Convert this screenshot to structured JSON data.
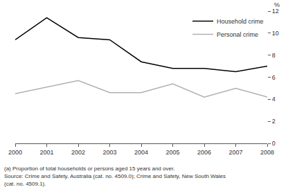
{
  "chart_data": {
    "type": "line",
    "y_label": "%",
    "x": [
      2000,
      2001,
      2002,
      2003,
      2004,
      2005,
      2006,
      2007,
      2008
    ],
    "series": [
      {
        "name": "Household crime",
        "color": "#000000",
        "values": [
          9.4,
          11.4,
          9.6,
          9.4,
          7.4,
          6.8,
          6.8,
          6.5,
          7.0
        ]
      },
      {
        "name": "Personal crime",
        "color": "#b0b0b0",
        "values": [
          4.5,
          5.1,
          5.7,
          4.6,
          4.6,
          5.4,
          4.2,
          5.0,
          4.2
        ]
      }
    ],
    "xlim": [
      2000,
      2008
    ],
    "xticks": [
      2000,
      2001,
      2002,
      2003,
      2004,
      2005,
      2006,
      2007,
      2008
    ],
    "ylim": [
      0,
      12
    ],
    "yticks": [
      0,
      2,
      4,
      6,
      8,
      10,
      12
    ],
    "grid": false,
    "legend": "top-right",
    "annotations": [
      "(a) Proportion of total households or persons aged 15 years and over.",
      "Source: Crime and Safety, Australia (cat. no. 4509.0); Crime and Safety, New South Wales",
      "(cat. no. 4509.1)."
    ]
  }
}
